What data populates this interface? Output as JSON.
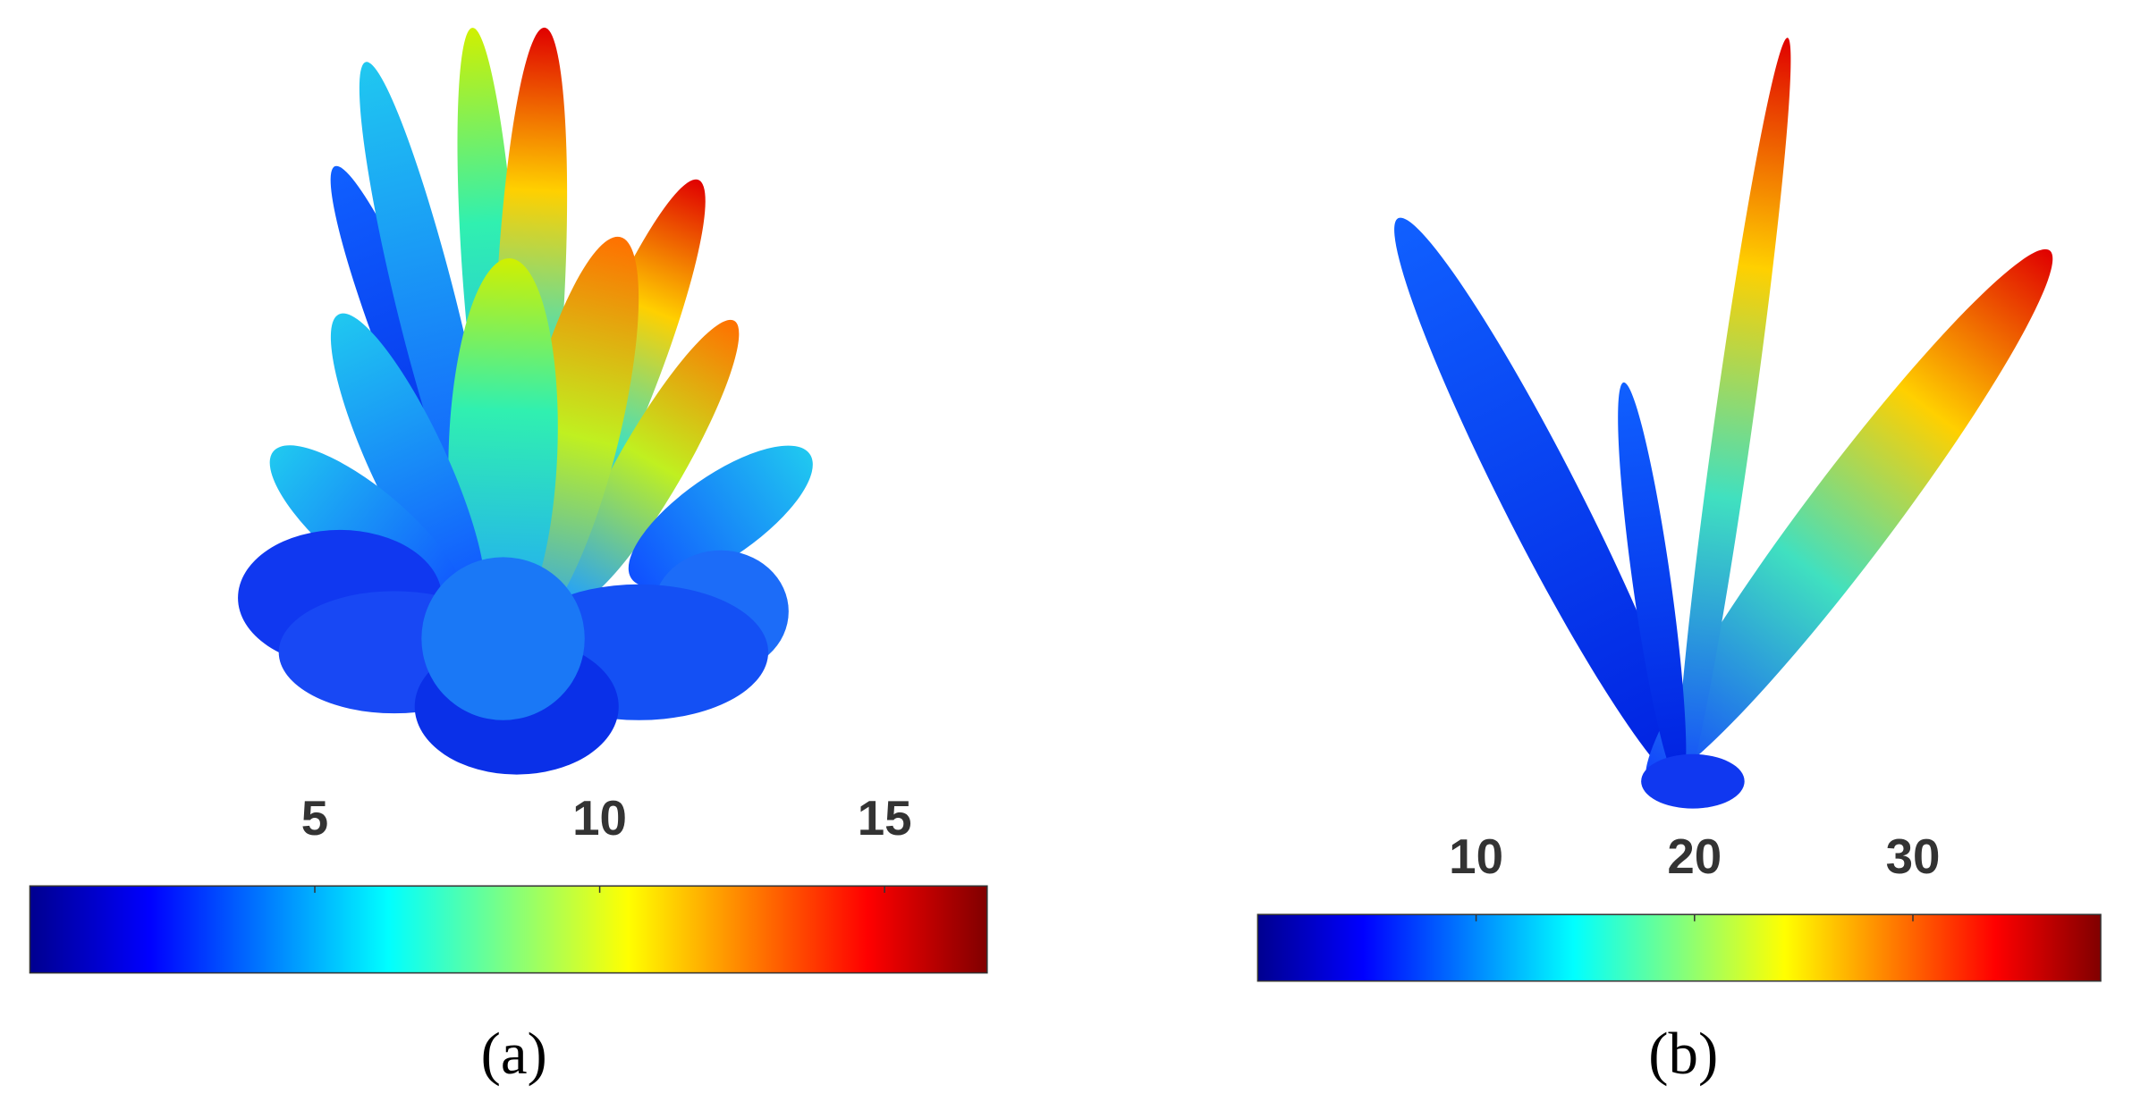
{
  "panels": [
    {
      "label": "(a)",
      "colorbar": {
        "lim": [
          0,
          16.8
        ],
        "ticks": [
          5,
          10,
          15
        ],
        "colormap": "jet"
      }
    },
    {
      "label": "(b)",
      "colorbar": {
        "lim": [
          0,
          38.6
        ],
        "ticks": [
          10,
          20,
          30
        ],
        "colormap": "jet"
      }
    }
  ]
}
